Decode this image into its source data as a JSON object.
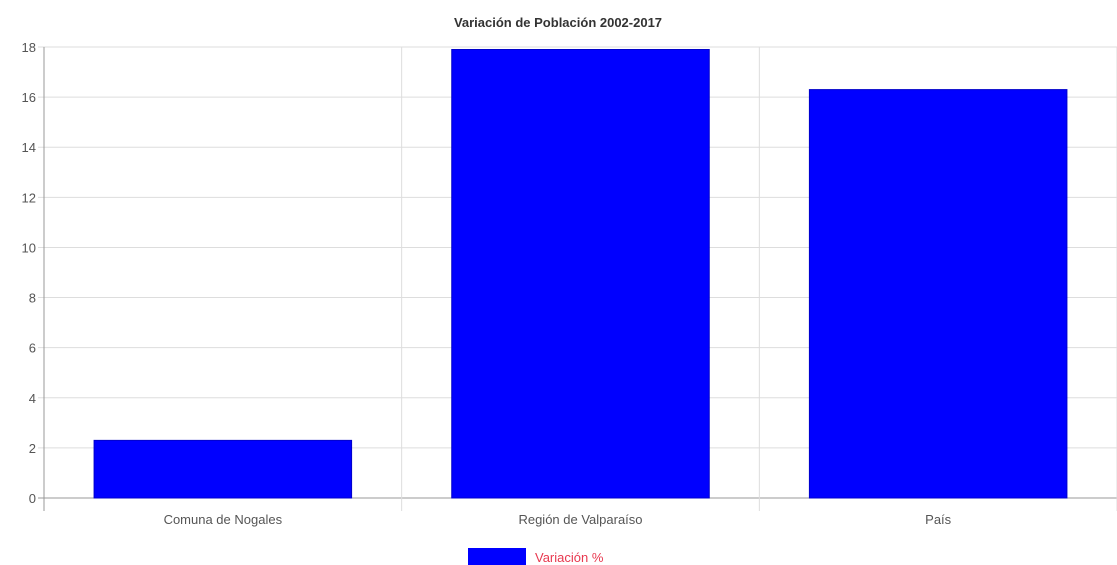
{
  "chart_data": {
    "type": "bar",
    "title": "Variación de Población 2002-2017",
    "xlabel": "",
    "ylabel": "",
    "categories": [
      "Comuna de Nogales",
      "Región de Valparaíso",
      "País"
    ],
    "series": [
      {
        "name": "Variación %",
        "values": [
          2.3,
          17.9,
          16.3
        ],
        "color": "#0000ff"
      }
    ],
    "ylim": [
      0,
      18
    ],
    "yticks": [
      "0",
      "2",
      "4",
      "6",
      "8",
      "10",
      "12",
      "14",
      "16",
      "18"
    ],
    "grid": true,
    "legend_position": "bottom",
    "legend_text_color": "#e8384f"
  }
}
